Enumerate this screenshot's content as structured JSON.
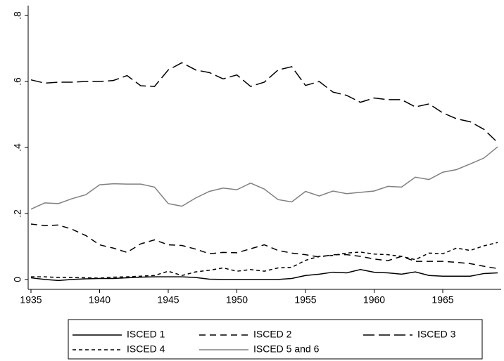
{
  "chart_data": {
    "type": "line",
    "x": [
      1935,
      1936,
      1937,
      1938,
      1939,
      1940,
      1941,
      1942,
      1943,
      1944,
      1945,
      1946,
      1947,
      1948,
      1949,
      1950,
      1951,
      1952,
      1953,
      1954,
      1955,
      1956,
      1957,
      1958,
      1959,
      1960,
      1961,
      1962,
      1963,
      1964,
      1965,
      1966,
      1967,
      1968,
      1969
    ],
    "series": [
      {
        "name": "ISCED 1",
        "color": "#000000",
        "line_style": "solid",
        "values": [
          0.005,
          0.0,
          -0.003,
          0.0,
          0.002,
          0.003,
          0.003,
          0.005,
          0.007,
          0.008,
          0.008,
          0.008,
          0.006,
          0.001,
          0.0,
          0.0,
          0.0,
          0.0,
          0.0,
          0.003,
          0.012,
          0.016,
          0.022,
          0.02,
          0.03,
          0.022,
          0.02,
          0.016,
          0.023,
          0.012,
          0.01,
          0.01,
          0.01,
          0.018,
          0.02
        ]
      },
      {
        "name": "ISCED 2",
        "color": "#000000",
        "line_style": "dash",
        "values": [
          0.168,
          0.163,
          0.165,
          0.152,
          0.133,
          0.105,
          0.095,
          0.082,
          0.108,
          0.12,
          0.105,
          0.103,
          0.092,
          0.078,
          0.082,
          0.081,
          0.093,
          0.105,
          0.088,
          0.08,
          0.075,
          0.068,
          0.075,
          0.075,
          0.07,
          0.062,
          0.057,
          0.07,
          0.055,
          0.055,
          0.055,
          0.052,
          0.048,
          0.04,
          0.033
        ]
      },
      {
        "name": "ISCED 3",
        "color": "#000000",
        "line_style": "longdash",
        "values": [
          0.605,
          0.595,
          0.598,
          0.598,
          0.6,
          0.6,
          0.603,
          0.618,
          0.587,
          0.585,
          0.635,
          0.657,
          0.635,
          0.627,
          0.608,
          0.62,
          0.585,
          0.598,
          0.635,
          0.645,
          0.588,
          0.6,
          0.568,
          0.558,
          0.537,
          0.55,
          0.545,
          0.545,
          0.523,
          0.532,
          0.505,
          0.487,
          0.478,
          0.455,
          0.415
        ]
      },
      {
        "name": "ISCED 4",
        "color": "#000000",
        "line_style": "shortdash",
        "values": [
          0.008,
          0.008,
          0.006,
          0.006,
          0.005,
          0.004,
          0.007,
          0.008,
          0.01,
          0.012,
          0.025,
          0.012,
          0.023,
          0.028,
          0.035,
          0.025,
          0.03,
          0.025,
          0.035,
          0.037,
          0.058,
          0.07,
          0.073,
          0.08,
          0.083,
          0.077,
          0.075,
          0.07,
          0.06,
          0.08,
          0.078,
          0.095,
          0.088,
          0.102,
          0.112
        ]
      },
      {
        "name": "ISCED 5 and 6",
        "color": "#808080",
        "line_style": "solid",
        "values": [
          0.213,
          0.232,
          0.23,
          0.245,
          0.257,
          0.287,
          0.29,
          0.289,
          0.289,
          0.28,
          0.23,
          0.222,
          0.247,
          0.267,
          0.277,
          0.272,
          0.292,
          0.274,
          0.242,
          0.235,
          0.267,
          0.253,
          0.268,
          0.26,
          0.264,
          0.268,
          0.282,
          0.28,
          0.31,
          0.303,
          0.325,
          0.333,
          0.35,
          0.368,
          0.402
        ]
      }
    ],
    "xlim": [
      1935,
      1969
    ],
    "xticks": [
      1935,
      1940,
      1945,
      1950,
      1955,
      1960,
      1965
    ],
    "ylim": [
      -0.03,
      0.83
    ],
    "yticks": [
      0,
      {
        "value": 0.2,
        "label": ".2"
      },
      {
        "value": 0.4,
        "label": ".4"
      },
      {
        "value": 0.6,
        "label": ".6"
      },
      {
        "value": 0.8,
        "label": ".8"
      }
    ],
    "grid": false,
    "legend": "bottom"
  }
}
